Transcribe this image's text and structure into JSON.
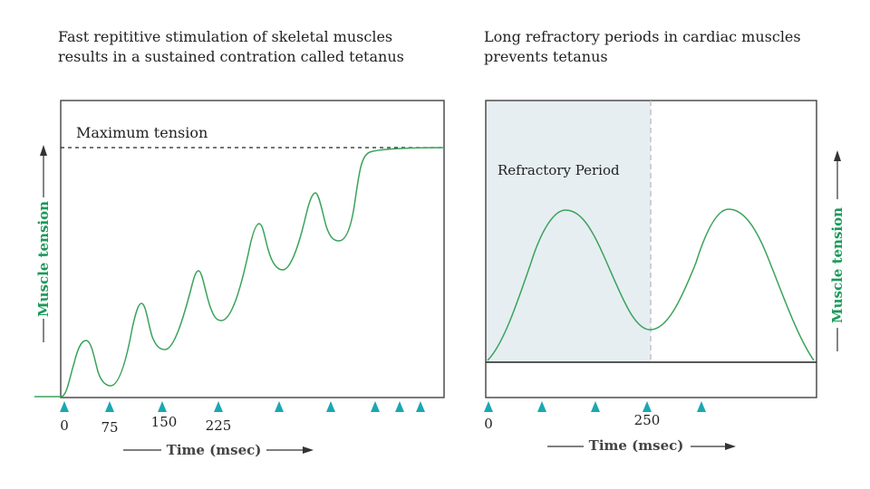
{
  "left_panel": {
    "caption_line1": "Fast repititive stimulation of skeletal muscles",
    "caption_line2": "results in a sustained contration called tetanus",
    "max_tension_label": "Maximum tension",
    "y_axis_label": "Muscle tension",
    "x_axis_label": "Time (msec)",
    "tick_labels": [
      "0",
      "75",
      "150",
      "225"
    ],
    "stimulus_count": 9
  },
  "right_panel": {
    "caption_line1": "Long refractory periods in cardiac muscles",
    "caption_line2": "prevents tetanus",
    "refractory_label": "Refractory Period",
    "y_axis_label": "Muscle tension",
    "x_axis_label": "Time (msec)",
    "tick_labels": [
      "0",
      "250"
    ],
    "stimulus_count": 5
  },
  "colors": {
    "curve": "#3aa35a",
    "stimulus_marker": "#1aa8b0",
    "refractory_fill": "#e6eef2",
    "label_green": "#1a9a5a"
  }
}
